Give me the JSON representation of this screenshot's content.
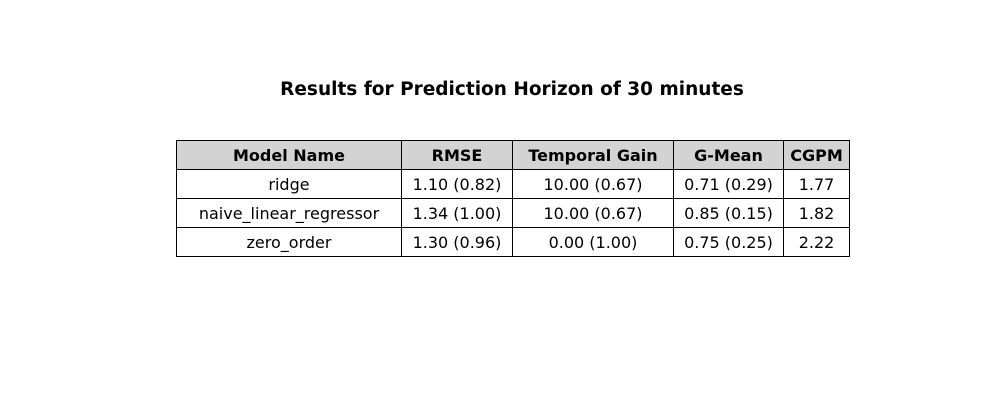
{
  "chart_data": {
    "type": "table",
    "title": "Results for Prediction Horizon of 30 minutes",
    "columns": [
      "Model Name",
      "RMSE",
      "Temporal Gain",
      "G-Mean",
      "CGPM"
    ],
    "rows": [
      [
        "ridge",
        "1.10 (0.82)",
        "10.00 (0.67)",
        "0.71 (0.29)",
        "1.77"
      ],
      [
        "naive_linear_regressor",
        "1.34 (1.00)",
        "10.00 (0.67)",
        "0.85 (0.15)",
        "1.82"
      ],
      [
        "zero_order",
        "1.30 (0.96)",
        "0.00 (1.00)",
        "0.75 (0.25)",
        "2.22"
      ]
    ],
    "header_background": "#d3d3d3"
  }
}
